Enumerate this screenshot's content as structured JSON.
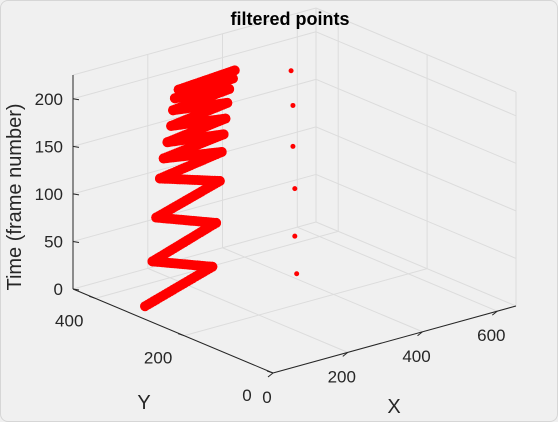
{
  "chart_data": {
    "type": "scatter",
    "projection": "3d",
    "title": "filtered points",
    "xlabel": "X",
    "ylabel": "Y",
    "zlabel": "Time (frame number)",
    "xlim": [
      0,
      650
    ],
    "ylim": [
      0,
      450
    ],
    "zlim": [
      0,
      225
    ],
    "x_ticks": [
      "0",
      "200",
      "400",
      "600"
    ],
    "y_ticks": [
      "0",
      "200",
      "400"
    ],
    "z_ticks": [
      "0",
      "50",
      "100",
      "150",
      "200"
    ],
    "grid": true,
    "marker_color": "#ff0000",
    "series": [
      {
        "description": "zigzag trajectory",
        "x": [
          50,
          230,
          70,
          240,
          80,
          250,
          90,
          255,
          100,
          260,
          110,
          265,
          120,
          270,
          125,
          275,
          130,
          285,
          140,
          290
        ],
        "y": [
          330,
          330,
          330,
          330,
          330,
          330,
          330,
          330,
          330,
          330,
          330,
          330,
          330,
          330,
          330,
          330,
          330,
          330,
          330,
          330
        ],
        "z": [
          0,
          22,
          45,
          67,
          90,
          110,
          130,
          140,
          150,
          158,
          166,
          174,
          182,
          190,
          198,
          204,
          210,
          214,
          218,
          222
        ]
      },
      {
        "description": "isolated points",
        "x": [
          420,
          415,
          415,
          410,
          410,
          405
        ],
        "y": [
          300,
          300,
          300,
          300,
          300,
          300
        ],
        "z": [
          0,
          40,
          90,
          135,
          178,
          215
        ]
      }
    ]
  }
}
